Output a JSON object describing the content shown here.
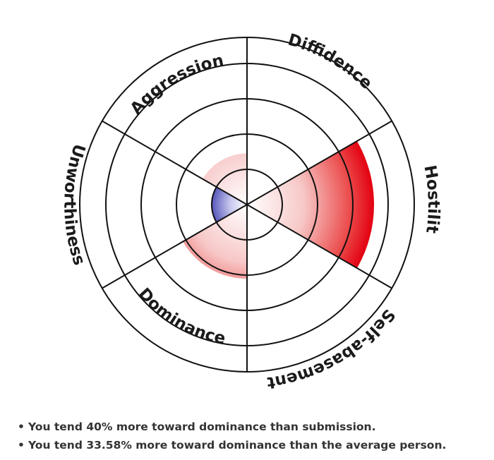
{
  "chart_data": {
    "type": "polar-area",
    "segments": [
      {
        "label": "Diffidence",
        "value": 0,
        "color": "red"
      },
      {
        "label": "Hostility",
        "value": 3.6,
        "color": "red"
      },
      {
        "label": "Self-abasement",
        "value": 0,
        "color": "red"
      },
      {
        "label": "Dominance",
        "value": 2.1,
        "color": "red"
      },
      {
        "label": "Unworthiness",
        "value": 1.0,
        "color": "blue"
      },
      {
        "label": "Aggression",
        "value": 1.45,
        "color": "red"
      }
    ],
    "rings": 4,
    "center_dot_value": 0.1,
    "grid": true
  },
  "notes": {
    "items": [
      "You tend 40% more toward dominance than submission.",
      "You tend 33.58% more toward dominance than the average person."
    ]
  },
  "colors": {
    "red_edge": "#e3000f",
    "blue_edge": "#2b2ba8",
    "grid_line": "#111111"
  }
}
